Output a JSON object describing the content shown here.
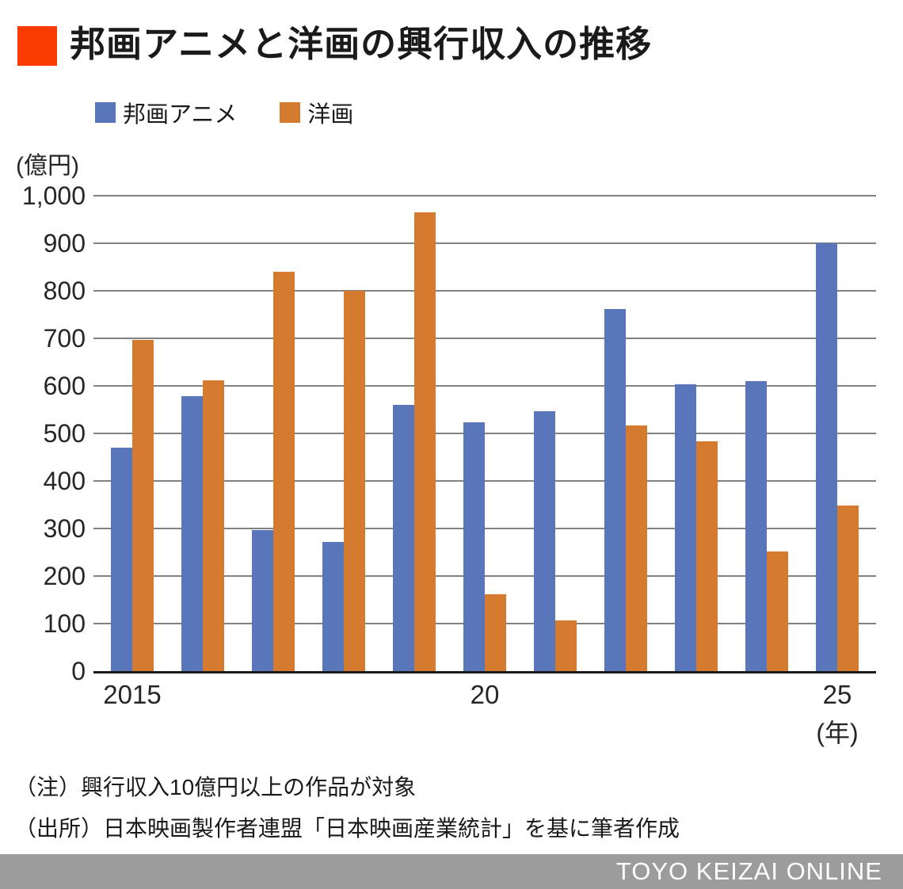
{
  "header": {
    "title": "邦画アニメと洋画の興行収入の推移",
    "accent_color": "#fa3c00"
  },
  "legend": [
    {
      "label": "邦画アニメ",
      "color": "#5976bb"
    },
    {
      "label": "洋画",
      "color": "#d57b2f"
    }
  ],
  "chart_data": {
    "type": "bar",
    "title": "邦画アニメと洋画の興行収入の推移",
    "unit_label": "(億円)",
    "categories": [
      2015,
      2016,
      2017,
      2018,
      2019,
      2020,
      2021,
      2022,
      2023,
      2024,
      2025
    ],
    "series": [
      {
        "name": "邦画アニメ",
        "color": "#5976bb",
        "values": [
          470,
          579,
          296,
          271,
          560,
          523,
          546,
          761,
          603,
          610,
          900
        ]
      },
      {
        "name": "洋画",
        "color": "#d57b2f",
        "values": [
          697,
          611,
          840,
          800,
          965,
          161,
          107,
          517,
          483,
          251,
          349
        ]
      }
    ],
    "ylim": [
      0,
      1000
    ],
    "ytick_step": 100,
    "ytick_labels": [
      "0",
      "100",
      "200",
      "300",
      "400",
      "500",
      "600",
      "700",
      "800",
      "900",
      "1,000"
    ],
    "xtick_labels": [
      {
        "index": 0,
        "label": "2015"
      },
      {
        "index": 5,
        "label": "20"
      },
      {
        "index": 10,
        "label": "25"
      }
    ],
    "x_axis_suffix": "(年)",
    "grid": true,
    "gridline_color": "#828282",
    "legend_position": "top"
  },
  "notes": [
    "（注）興行収入10億円以上の作品が対象",
    "（出所）日本映画製作者連盟「日本映画産業統計」を基に筆者作成"
  ],
  "footer": {
    "brand": "TOYO KEIZAI ONLINE",
    "background": "#9c9c9c"
  }
}
